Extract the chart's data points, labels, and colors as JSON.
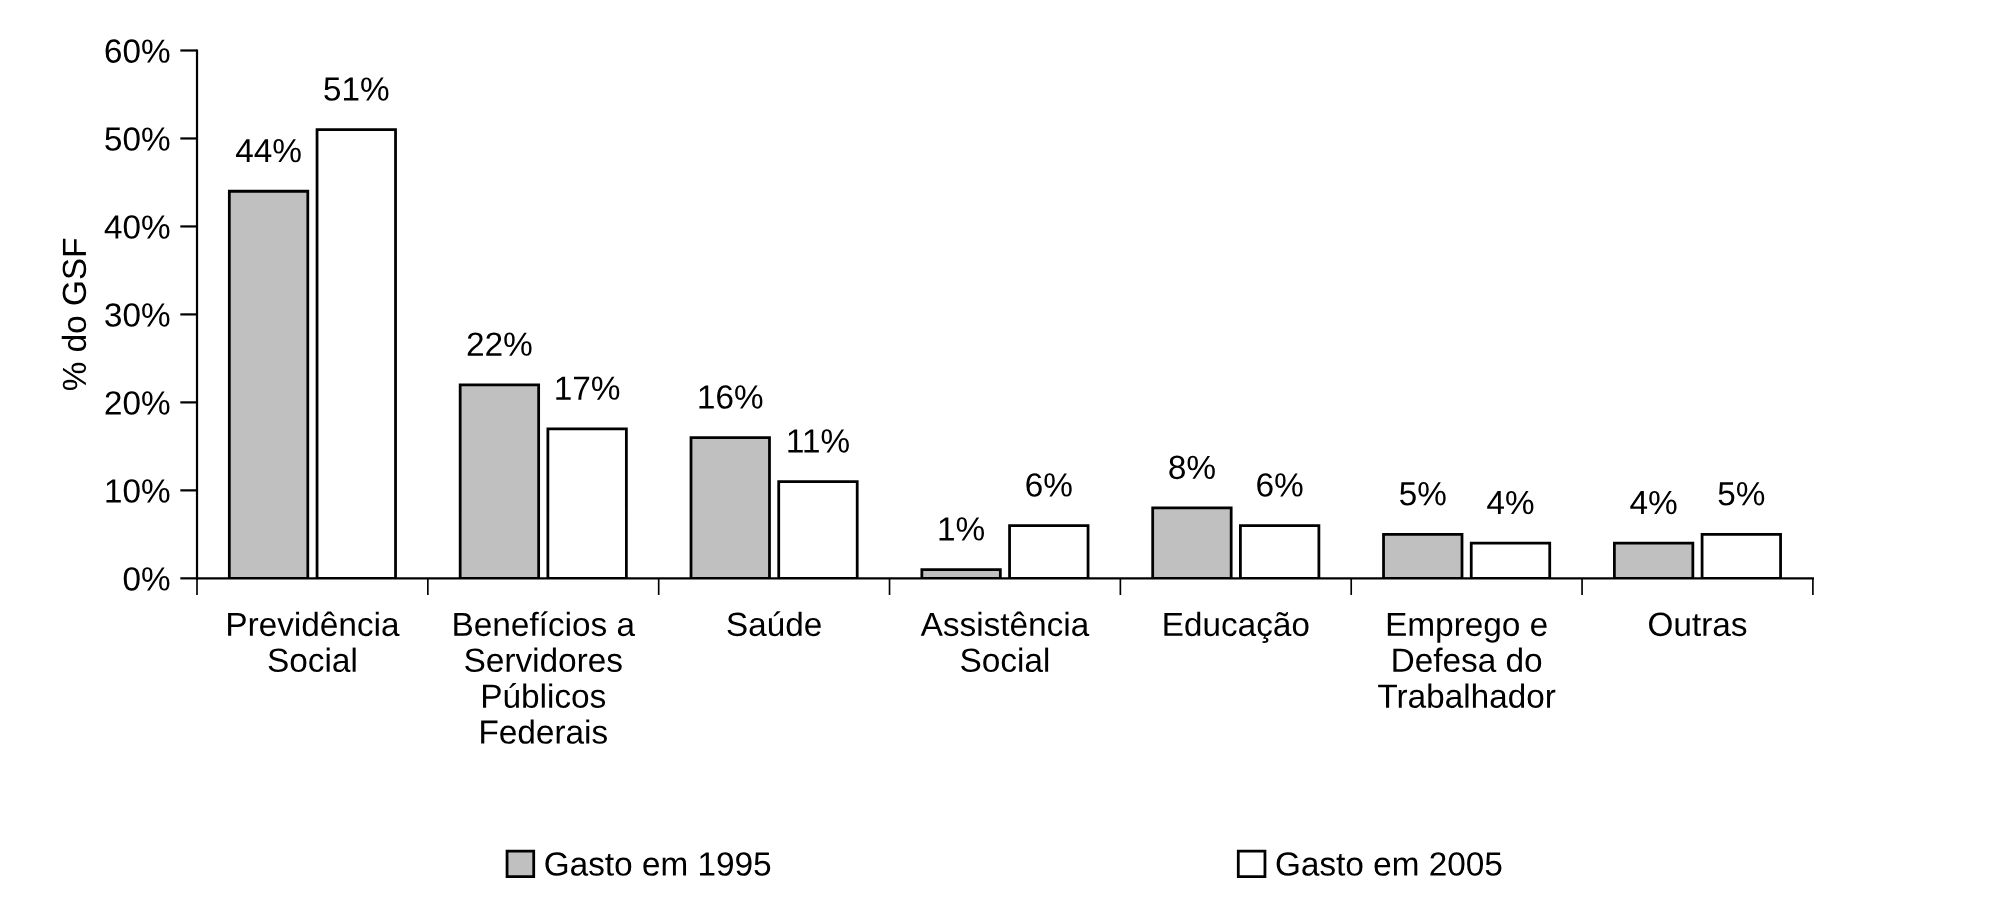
{
  "chart_data": {
    "type": "bar",
    "ylabel": "% do GSF",
    "categories": [
      "Previdência\nSocial",
      "Benefícios a\nServidores\nPúblicos\nFederais",
      "Saúde",
      "Assistência\nSocial",
      "Educação",
      "Emprego e\nDefesa do\nTrabalhador",
      "Outras"
    ],
    "series": [
      {
        "name": "Gasto em 1995",
        "color": "#c0c0c0",
        "values": [
          44,
          22,
          16,
          1,
          8,
          5,
          4
        ],
        "value_labels": [
          "44%",
          "22%",
          "16%",
          "1%",
          "8%",
          "5%",
          "4%"
        ]
      },
      {
        "name": "Gasto em 2005",
        "color": "#ffffff",
        "values": [
          51,
          17,
          11,
          6,
          6,
          4,
          5
        ],
        "value_labels": [
          "51%",
          "17%",
          "11%",
          "6%",
          "6%",
          "4%",
          "5%"
        ]
      }
    ],
    "ylim": [
      0,
      60
    ],
    "yticks": [
      {
        "value": 0,
        "label": "0%"
      },
      {
        "value": 10,
        "label": "10%"
      },
      {
        "value": 20,
        "label": "20%"
      },
      {
        "value": 30,
        "label": "30%"
      },
      {
        "value": 40,
        "label": "40%"
      },
      {
        "value": 50,
        "label": "50%"
      },
      {
        "value": 60,
        "label": "60%"
      }
    ],
    "grid": false,
    "legend": "bottom"
  }
}
